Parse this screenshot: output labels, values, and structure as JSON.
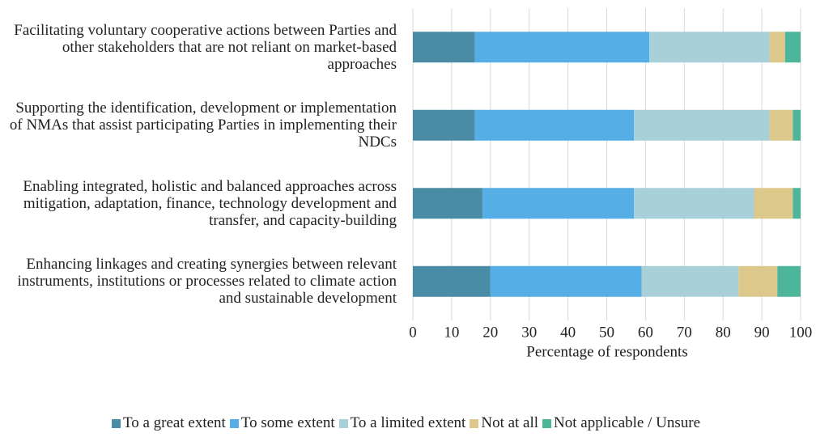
{
  "chart_data": {
    "type": "stacked_bar_horizontal",
    "categories": [
      "Facilitating voluntary cooperative actions between Parties and other stakeholders that are not reliant on market-based approaches",
      "Supporting the identification, development or implementation of NMAs that assist participating Parties in implementing their NDCs",
      "Enabling integrated, holistic and balanced approaches across mitigation, adaptation, finance, technology development and transfer, and capacity-building",
      "Enhancing linkages and creating synergies between relevant instruments, institutions or processes related to climate action and sustainable development"
    ],
    "series": [
      {
        "name": "To a great extent",
        "color": "#4a8ba5",
        "values": [
          16,
          16,
          18,
          20
        ]
      },
      {
        "name": "To some extent",
        "color": "#55aee6",
        "values": [
          45,
          41,
          39,
          39
        ]
      },
      {
        "name": "To a limited extent",
        "color": "#a8d0d8",
        "values": [
          31,
          35,
          31,
          25
        ]
      },
      {
        "name": "Not at all",
        "color": "#dbc88a",
        "values": [
          4,
          6,
          10,
          10
        ]
      },
      {
        "name": "Not applicable / Unsure",
        "color": "#4db59a",
        "values": [
          4,
          2,
          2,
          6
        ]
      }
    ],
    "xlabel": "Percentage of respondents",
    "xlim": [
      0,
      100
    ],
    "xticks": [
      0,
      10,
      20,
      30,
      40,
      50,
      60,
      70,
      80,
      90,
      100
    ],
    "grid": true,
    "legend": "bottom"
  }
}
